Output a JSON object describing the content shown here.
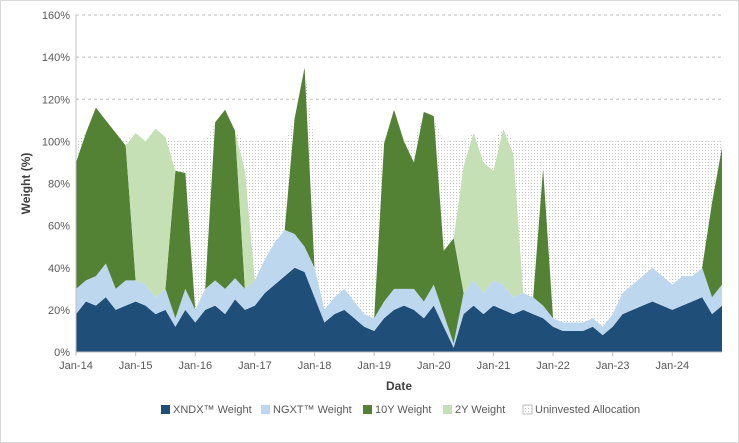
{
  "chart_data": {
    "type": "area",
    "stacked": true,
    "xlabel": "Date",
    "ylabel": "Weight (%)",
    "ylim": [
      0,
      160
    ],
    "y_ticks": [
      "0%",
      "20%",
      "40%",
      "60%",
      "80%",
      "100%",
      "120%",
      "140%",
      "160%"
    ],
    "x_ticks": [
      "Jan-14",
      "Jan-15",
      "Jan-16",
      "Jan-17",
      "Jan-18",
      "Jan-19",
      "Jan-20",
      "Jan-21",
      "Jan-22",
      "Jan-23",
      "Jan-24"
    ],
    "x_start": "Jan-14",
    "x_end": "Nov-24",
    "grid": "horizontal-dashed",
    "legend_position": "bottom",
    "x": [
      "Jan-14",
      "Mar-14",
      "May-14",
      "Jul-14",
      "Sep-14",
      "Nov-14",
      "Jan-15",
      "Mar-15",
      "May-15",
      "Jul-15",
      "Sep-15",
      "Nov-15",
      "Jan-16",
      "Mar-16",
      "May-16",
      "Jul-16",
      "Sep-16",
      "Nov-16",
      "Jan-17",
      "Mar-17",
      "May-17",
      "Jul-17",
      "Sep-17",
      "Nov-17",
      "Jan-18",
      "Mar-18",
      "May-18",
      "Jul-18",
      "Sep-18",
      "Nov-18",
      "Jan-19",
      "Mar-19",
      "May-19",
      "Jul-19",
      "Sep-19",
      "Nov-19",
      "Jan-20",
      "Mar-20",
      "May-20",
      "Jul-20",
      "Sep-20",
      "Nov-20",
      "Jan-21",
      "Mar-21",
      "May-21",
      "Jul-21",
      "Sep-21",
      "Nov-21",
      "Jan-22",
      "Mar-22",
      "May-22",
      "Jul-22",
      "Sep-22",
      "Nov-22",
      "Jan-23",
      "Mar-23",
      "May-23",
      "Jul-23",
      "Sep-23",
      "Nov-23",
      "Jan-24",
      "Mar-24",
      "May-24",
      "Jul-24",
      "Sep-24",
      "Nov-24"
    ],
    "series": [
      {
        "name": "XNDX™ Weight",
        "color": "#1f4e79",
        "values": [
          18,
          24,
          22,
          26,
          20,
          22,
          24,
          22,
          18,
          20,
          12,
          20,
          14,
          20,
          22,
          18,
          25,
          20,
          22,
          28,
          32,
          36,
          40,
          38,
          26,
          14,
          18,
          20,
          16,
          12,
          10,
          16,
          20,
          22,
          20,
          16,
          22,
          12,
          2,
          18,
          22,
          18,
          22,
          20,
          18,
          20,
          18,
          16,
          12,
          10,
          10,
          10,
          12,
          8,
          12,
          18,
          20,
          22,
          24,
          22,
          20,
          22,
          24,
          26,
          18,
          22
        ]
      },
      {
        "name": "NGXT™ Weight",
        "color": "#bdd7ee",
        "values": [
          12,
          10,
          14,
          16,
          10,
          12,
          10,
          10,
          8,
          10,
          4,
          10,
          6,
          10,
          12,
          12,
          10,
          10,
          12,
          16,
          20,
          22,
          16,
          12,
          14,
          6,
          8,
          10,
          8,
          6,
          6,
          8,
          10,
          8,
          10,
          8,
          10,
          6,
          2,
          10,
          12,
          10,
          12,
          12,
          8,
          8,
          8,
          6,
          4,
          4,
          4,
          4,
          4,
          4,
          6,
          10,
          12,
          14,
          16,
          14,
          12,
          14,
          12,
          14,
          8,
          10
        ]
      },
      {
        "name": "10Y Weight",
        "color": "#548235",
        "values": [
          60,
          70,
          80,
          68,
          74,
          64,
          0,
          0,
          0,
          0,
          70,
          55,
          0,
          0,
          75,
          85,
          70,
          0,
          0,
          0,
          0,
          0,
          55,
          85,
          0,
          0,
          0,
          0,
          0,
          0,
          0,
          75,
          85,
          70,
          60,
          90,
          80,
          30,
          50,
          0,
          0,
          0,
          0,
          0,
          0,
          0,
          0,
          65,
          0,
          0,
          0,
          0,
          0,
          0,
          0,
          0,
          0,
          0,
          0,
          0,
          0,
          0,
          0,
          0,
          45,
          65
        ]
      },
      {
        "name": "2Y Weight",
        "color": "#c5e0b4",
        "values": [
          0,
          0,
          0,
          0,
          0,
          0,
          70,
          68,
          80,
          72,
          0,
          0,
          0,
          0,
          0,
          0,
          0,
          56,
          0,
          0,
          0,
          0,
          0,
          0,
          0,
          0,
          0,
          0,
          0,
          0,
          0,
          0,
          0,
          0,
          0,
          0,
          0,
          0,
          0,
          60,
          70,
          62,
          52,
          74,
          68,
          0,
          0,
          0,
          0,
          0,
          0,
          0,
          0,
          0,
          0,
          0,
          0,
          0,
          0,
          0,
          0,
          0,
          0,
          0,
          0,
          0
        ]
      }
    ],
    "uninvested": {
      "name": "Uninvested Allocation",
      "color": "#d9d9d9",
      "cap": 100
    }
  }
}
